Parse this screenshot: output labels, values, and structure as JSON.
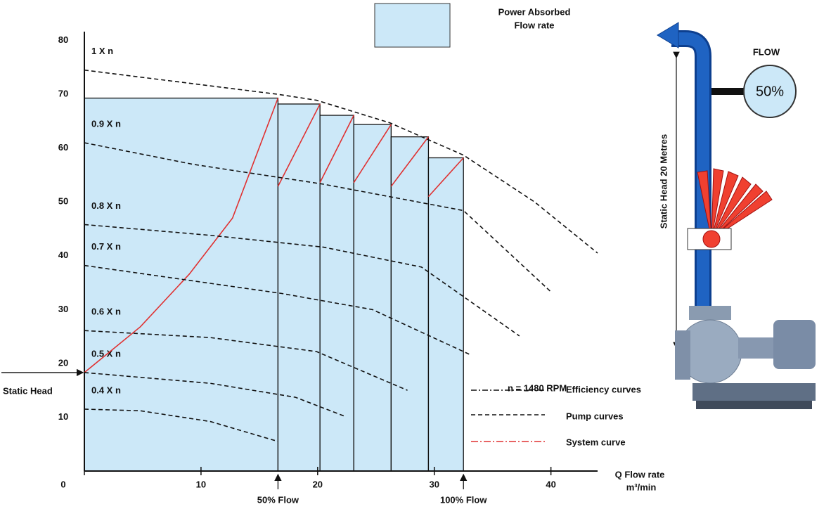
{
  "chart_data": {
    "type": "line",
    "xlim": [
      0,
      44
    ],
    "ylim": [
      0,
      84
    ],
    "xticks": [
      0,
      10,
      20,
      30,
      40
    ],
    "yticks": [
      10,
      20,
      30,
      40,
      50,
      60,
      70,
      80
    ],
    "x_label": "Q Flow rate",
    "x_unit": "m³/min",
    "series": [
      {
        "name": "1 X n",
        "x": [
          0,
          16.6,
          19.9,
          26.2,
          32.5,
          38.6,
          44
        ],
        "values": [
          74.5,
          70,
          68.9,
          64.7,
          58.7,
          50,
          40.5
        ]
      },
      {
        "name": "0.9 X n",
        "x": [
          0,
          9.3,
          20.5,
          32.5,
          40
        ],
        "values": [
          61,
          57,
          53.3,
          48.4,
          33.3
        ]
      },
      {
        "name": "0.8 X n",
        "x": [
          0,
          10.8,
          20.5,
          28.9,
          37.3
        ],
        "values": [
          45.8,
          43.8,
          41.6,
          37.9,
          25.1
        ]
      },
      {
        "name": "0.7 X n",
        "x": [
          0,
          16.9,
          24.7,
          33.1
        ],
        "values": [
          38.2,
          33,
          30,
          21.6
        ]
      },
      {
        "name": "0.6 X n",
        "x": [
          0,
          10.8,
          19.9,
          27.7
        ],
        "values": [
          26.1,
          24.8,
          22.2,
          15
        ]
      },
      {
        "name": "0.5 X n",
        "x": [
          0,
          10.8,
          18.1,
          22.3
        ],
        "values": [
          18.3,
          16.3,
          13.7,
          10.2
        ]
      },
      {
        "name": "0.4 X n",
        "x": [
          0,
          4.8,
          10.8,
          16.6
        ],
        "values": [
          11.5,
          11.2,
          9.2,
          5.5
        ]
      }
    ],
    "system_curve": {
      "x": [
        0,
        4.8,
        9,
        12.7,
        16.6
      ],
      "values": [
        18.3,
        26.8,
        36.6,
        47,
        69.3
      ]
    },
    "power_absorbed": {
      "label": [
        "Power Absorbed",
        "Flow rate"
      ],
      "edges": [
        0,
        16.6,
        20.2,
        23.1,
        26.3,
        29.5,
        32.5
      ],
      "values": [
        69.3,
        68.2,
        66.1,
        64.4,
        62.1,
        58.2
      ],
      "curve_starts": [
        52.9,
        53.6,
        53.6,
        52.9,
        51
      ]
    },
    "static_head": {
      "label": "Static Head",
      "value": 18.3
    },
    "flow_markers": [
      {
        "x": 16.6,
        "label": "50% Flow"
      },
      {
        "x": 32.5,
        "label": "100% Flow"
      }
    ],
    "legend": {
      "rpm": "n = 1480 RPM",
      "entries": [
        "Efficiency curves",
        "Pump curves",
        "System curve"
      ]
    },
    "illustration": {
      "flow": "FLOW",
      "gauge": "50%",
      "height_label": "Static Head 20 Metres"
    }
  }
}
